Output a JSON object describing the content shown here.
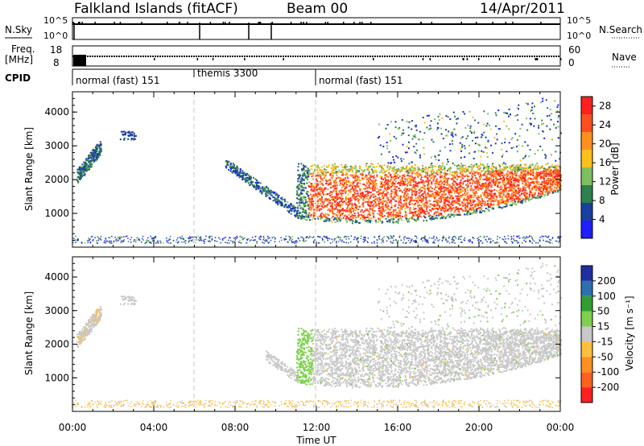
{
  "header": {
    "station": "Falkland Islands (fitACF)",
    "beam": "Beam 00",
    "date": "14/Apr/2011"
  },
  "side_labels": {
    "nsky": "N.Sky",
    "freq_line1": "Freq.",
    "freq_line2": "[MHz]",
    "cpid": "CPID",
    "nsearch": "N.Search",
    "nave": "Nave"
  },
  "noise_axis": {
    "top": "10^5",
    "bottom": "10^0",
    "right_top": "10^5",
    "right_bottom": "10^0"
  },
  "freq_axis": {
    "top": "18",
    "bottom": "8",
    "right_top": "60",
    "right_bottom": "0"
  },
  "cpid_segments": [
    {
      "label": "normal (fast) 151",
      "start_hour": 0
    },
    {
      "label": "themis 3300",
      "start_hour": 6
    },
    {
      "label": "normal (fast) 151",
      "start_hour": 12
    }
  ],
  "colors": {
    "power": [
      "#1f1fff",
      "#1a3f9e",
      "#2f7f4f",
      "#7fbf5f",
      "#ffbf1f",
      "#ff8f1f",
      "#ff4f1f",
      "#ff1f1f"
    ],
    "velocity": [
      "#ff1f1f",
      "#ff5f1f",
      "#ff8f1f",
      "#ffbf3f",
      "#c8c8c8",
      "#7fd04f",
      "#2fa02f",
      "#2f6fb0",
      "#1f2f9f"
    ],
    "vel_main": "#c8c8c8",
    "vel_edge": "#7fd04f",
    "vel_low": "#ffbf3f"
  },
  "chart_data": [
    {
      "type": "heatmap",
      "title": "",
      "xlabel": "",
      "ylabel": "Slant Range [km]",
      "xlim": [
        0,
        24
      ],
      "ylim": [
        0,
        4600
      ],
      "x_ticks": [
        "00:00",
        "04:00",
        "08:00",
        "12:00",
        "16:00",
        "20:00",
        "00:00"
      ],
      "y_ticks": [
        "1000",
        "2000",
        "3000",
        "4000"
      ],
      "colorbar": {
        "label": "Power [dB]",
        "ticks": [
          "4",
          "8",
          "12",
          "16",
          "20",
          "24",
          "28"
        ],
        "range": [
          0,
          30
        ]
      },
      "features": [
        {
          "name": "early-patch",
          "hours": [
            0.2,
            1.4
          ],
          "range_km": [
            2100,
            3200
          ]
        },
        {
          "name": "evening-patch",
          "hours": [
            11.0,
            24.0
          ],
          "range_km": [
            700,
            2500
          ],
          "peak_db": 28
        },
        {
          "name": "ground-band",
          "hours": [
            0,
            24
          ],
          "range_km": [
            150,
            350
          ]
        }
      ]
    },
    {
      "type": "heatmap",
      "title": "",
      "xlabel": "Time UT",
      "ylabel": "Slant Range [km]",
      "xlim": [
        0,
        24
      ],
      "ylim": [
        0,
        4600
      ],
      "x_ticks": [
        "00:00",
        "04:00",
        "08:00",
        "12:00",
        "16:00",
        "20:00",
        "00:00"
      ],
      "y_ticks": [
        "1000",
        "2000",
        "3000",
        "4000"
      ],
      "colorbar": {
        "label": "Velocity [m s⁻¹]",
        "ticks": [
          "200",
          "100",
          "50",
          "15",
          "-15",
          "-50",
          "-100",
          "-200"
        ],
        "range": [
          -250,
          250
        ]
      },
      "features": [
        {
          "name": "evening-patch",
          "hours": [
            11.0,
            24.0
          ],
          "range_km": [
            600,
            2500
          ],
          "velocity_ms": [
            -15,
            15
          ]
        }
      ]
    }
  ]
}
